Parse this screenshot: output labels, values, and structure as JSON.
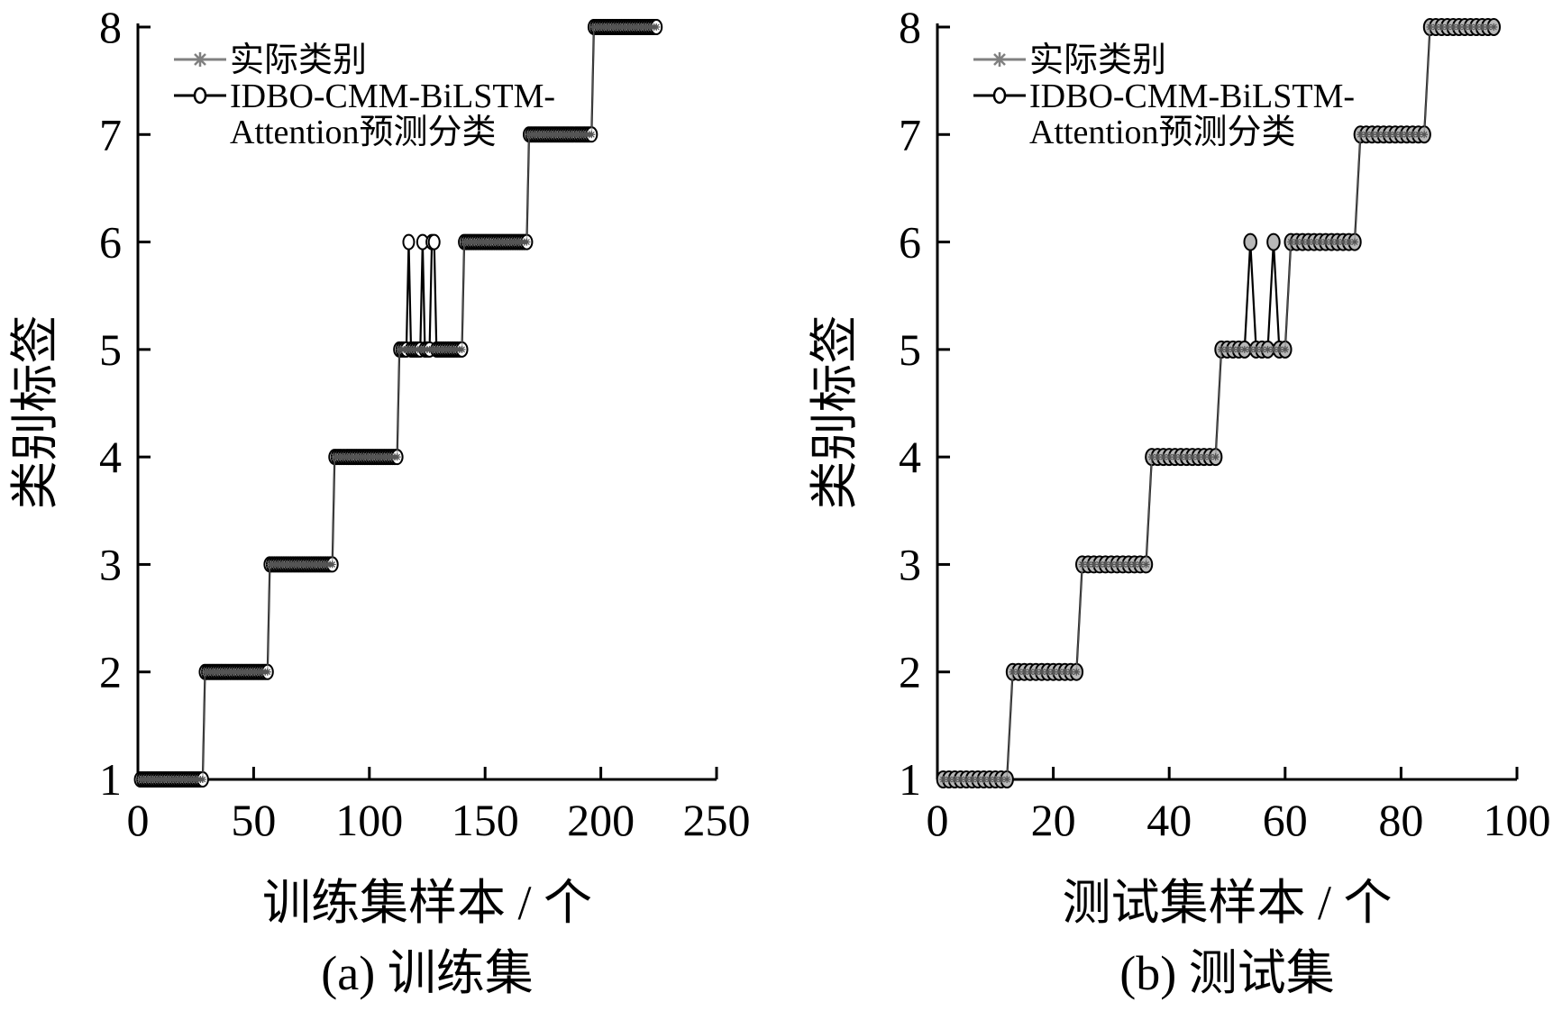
{
  "chart_data": [
    {
      "type": "line",
      "subplot_label": "(a)  训练集",
      "xlabel": "训练集样本 / 个",
      "ylabel": "类别标签",
      "xlim": [
        0,
        250
      ],
      "ylim": [
        1,
        8
      ],
      "xticks": [
        0,
        50,
        100,
        150,
        200,
        250
      ],
      "yticks": [
        1,
        2,
        3,
        4,
        5,
        6,
        7,
        8
      ],
      "legend": {
        "position": "top-left",
        "entries": [
          {
            "label_lines": [
              "实际类别"
            ],
            "marker": "asterisk",
            "color": "#808080"
          },
          {
            "label_lines": [
              "IDBO-CMM-BiLSTM-",
              "Attention预测分类"
            ],
            "marker": "circle",
            "color": "#000000"
          }
        ]
      },
      "series": [
        {
          "name": "实际类别",
          "segments": [
            {
              "from": 1,
              "to": 28,
              "value": 1
            },
            {
              "from": 29,
              "to": 56,
              "value": 2
            },
            {
              "from": 57,
              "to": 84,
              "value": 3
            },
            {
              "from": 85,
              "to": 112,
              "value": 4
            },
            {
              "from": 113,
              "to": 140,
              "value": 5
            },
            {
              "from": 141,
              "to": 168,
              "value": 6
            },
            {
              "from": 169,
              "to": 196,
              "value": 7
            },
            {
              "from": 197,
              "to": 224,
              "value": 8
            }
          ]
        },
        {
          "name": "IDBO-CMM-BiLSTM-Attention预测分类",
          "segments": [
            {
              "from": 1,
              "to": 28,
              "value": 1
            },
            {
              "from": 29,
              "to": 56,
              "value": 2
            },
            {
              "from": 57,
              "to": 84,
              "value": 3
            },
            {
              "from": 85,
              "to": 112,
              "value": 4
            },
            {
              "from": 113,
              "to": 140,
              "value": 5
            },
            {
              "from": 141,
              "to": 168,
              "value": 6
            },
            {
              "from": 169,
              "to": 196,
              "value": 7
            },
            {
              "from": 197,
              "to": 224,
              "value": 8
            }
          ],
          "overrides": [
            [
              117,
              6
            ],
            [
              123,
              6
            ],
            [
              127,
              6
            ],
            [
              128,
              6
            ]
          ]
        }
      ]
    },
    {
      "type": "line",
      "subplot_label": "(b)  测试集",
      "xlabel": "测试集样本 / 个",
      "ylabel": "类别标签",
      "xlim": [
        0,
        100
      ],
      "ylim": [
        1,
        8
      ],
      "xticks": [
        0,
        20,
        40,
        60,
        80,
        100
      ],
      "yticks": [
        1,
        2,
        3,
        4,
        5,
        6,
        7,
        8
      ],
      "legend": {
        "position": "top-left",
        "entries": [
          {
            "label_lines": [
              "实际类别"
            ],
            "marker": "asterisk",
            "color": "#808080"
          },
          {
            "label_lines": [
              "IDBO-CMM-BiLSTM-",
              "Attention预测分类"
            ],
            "marker": "circle",
            "color": "#000000"
          }
        ]
      },
      "series": [
        {
          "name": "实际类别",
          "segments": [
            {
              "from": 1,
              "to": 12,
              "value": 1
            },
            {
              "from": 13,
              "to": 24,
              "value": 2
            },
            {
              "from": 25,
              "to": 36,
              "value": 3
            },
            {
              "from": 37,
              "to": 48,
              "value": 4
            },
            {
              "from": 49,
              "to": 60,
              "value": 5
            },
            {
              "from": 61,
              "to": 72,
              "value": 6
            },
            {
              "from": 73,
              "to": 84,
              "value": 7
            },
            {
              "from": 85,
              "to": 96,
              "value": 8
            }
          ]
        },
        {
          "name": "IDBO-CMM-BiLSTM-Attention预测分类",
          "segments": [
            {
              "from": 1,
              "to": 12,
              "value": 1
            },
            {
              "from": 13,
              "to": 24,
              "value": 2
            },
            {
              "from": 25,
              "to": 36,
              "value": 3
            },
            {
              "from": 37,
              "to": 48,
              "value": 4
            },
            {
              "from": 49,
              "to": 60,
              "value": 5
            },
            {
              "from": 61,
              "to": 72,
              "value": 6
            },
            {
              "from": 73,
              "to": 84,
              "value": 7
            },
            {
              "from": 85,
              "to": 96,
              "value": 8
            }
          ],
          "overrides": [
            [
              54,
              6
            ],
            [
              58,
              6
            ]
          ]
        }
      ]
    }
  ]
}
